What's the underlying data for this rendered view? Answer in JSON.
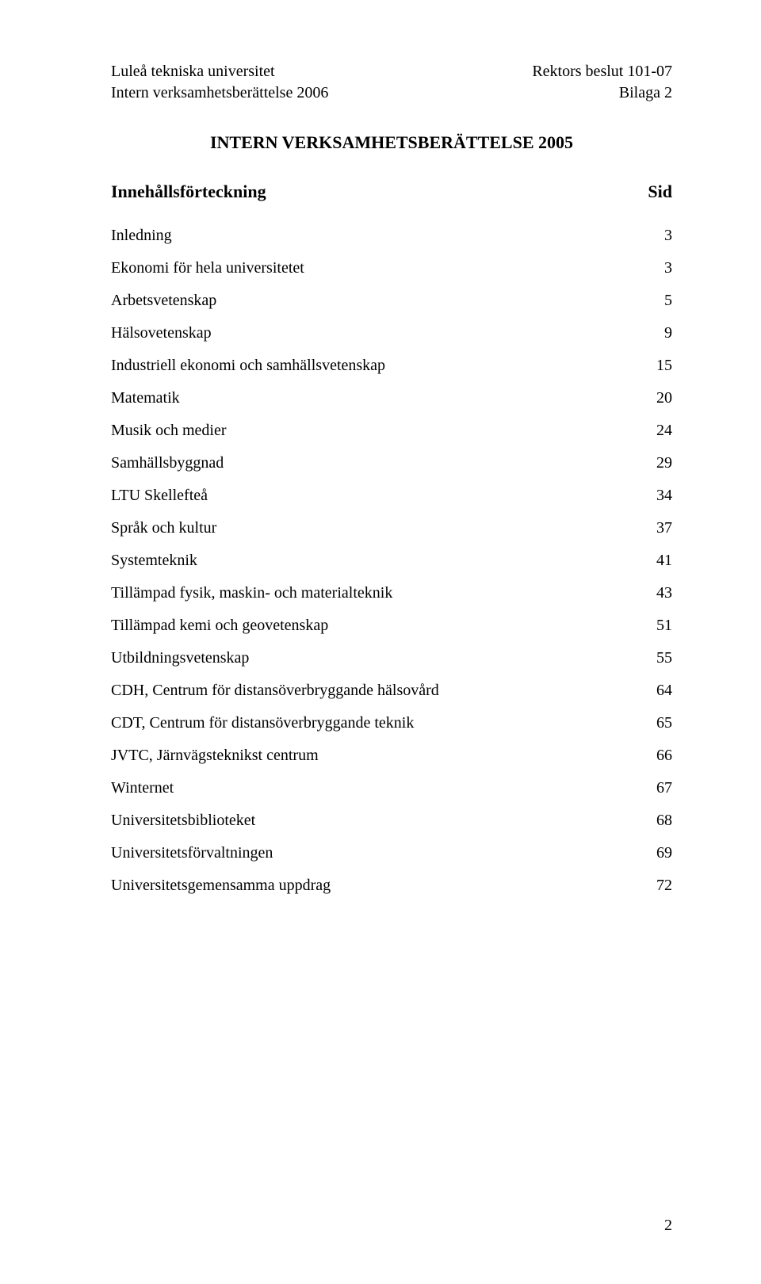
{
  "header": {
    "left_top": "Luleå tekniska universitet",
    "left_bottom": "Intern verksamhetsberättelse 2006",
    "right_top": "Rektors beslut 101-07",
    "right_bottom": "Bilaga 2"
  },
  "title": "INTERN VERKSAMHETSBERÄTTELSE 2005",
  "toc_header": {
    "label": "Innehållsförteckning",
    "page": "Sid"
  },
  "toc": [
    {
      "label": "Inledning",
      "page": "3"
    },
    {
      "label": "Ekonomi för hela universitetet",
      "page": "3"
    },
    {
      "label": "Arbetsvetenskap",
      "page": "5"
    },
    {
      "label": "Hälsovetenskap",
      "page": "9"
    },
    {
      "label": "Industriell ekonomi och samhällsvetenskap",
      "page": "15"
    },
    {
      "label": "Matematik",
      "page": "20"
    },
    {
      "label": "Musik och medier",
      "page": "24"
    },
    {
      "label": "Samhällsbyggnad",
      "page": "29"
    },
    {
      "label": "LTU Skellefteå",
      "page": "34"
    },
    {
      "label": "Språk och kultur",
      "page": "37"
    },
    {
      "label": "Systemteknik",
      "page": "41"
    },
    {
      "label": "Tillämpad fysik, maskin- och materialteknik",
      "page": "43"
    },
    {
      "label": "Tillämpad kemi och geovetenskap",
      "page": "51"
    },
    {
      "label": "Utbildningsvetenskap",
      "page": "55"
    },
    {
      "label": "CDH, Centrum för distansöverbryggande hälsovård",
      "page": "64"
    },
    {
      "label": "CDT, Centrum för distansöverbryggande teknik",
      "page": "65"
    },
    {
      "label": "JVTC, Järnvägsteknikst centrum",
      "page": "66"
    },
    {
      "label": "Winternet",
      "page": "67"
    },
    {
      "label": "Universitetsbiblioteket",
      "page": "68"
    },
    {
      "label": "Universitetsförvaltningen",
      "page": "69"
    },
    {
      "label": "Universitetsgemensamma uppdrag",
      "page": "72"
    }
  ],
  "page_number": "2"
}
